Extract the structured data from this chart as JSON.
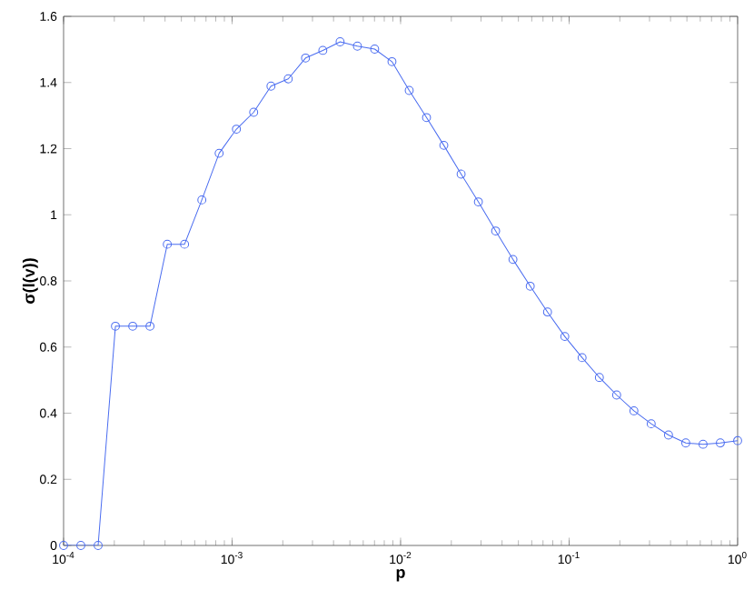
{
  "chart_data": {
    "type": "line",
    "xlabel": "p",
    "ylabel": "σ(l(v))",
    "log": "x",
    "marker": "circle",
    "line_style": "solid",
    "xlim": [
      0.0001,
      1
    ],
    "ylim": [
      0,
      1.6
    ],
    "xticks": [
      {
        "value": 0.0001,
        "label": "10$^{-4}$"
      },
      {
        "value": 0.001,
        "label": "10$^{-3}$"
      },
      {
        "value": 0.01,
        "label": "10$^{-2}$"
      },
      {
        "value": 0.1,
        "label": "10$^{-1}$"
      },
      {
        "value": 1,
        "label": "10$^{0}$"
      }
    ],
    "yticks": [
      0,
      0.2,
      0.4,
      0.6,
      0.8,
      1,
      1.2,
      1.4,
      1.6
    ],
    "x": [
      0.0001,
      0.0001266,
      0.0001603,
      0.0002031,
      0.0002572,
      0.0003257,
      0.0004125,
      0.0005223,
      0.0006614,
      0.0008377,
      0.001061,
      0.001343,
      0.001701,
      0.002154,
      0.002728,
      0.003455,
      0.004375,
      0.005541,
      0.007017,
      0.008886,
      0.01125,
      0.01425,
      0.01805,
      0.02286,
      0.02894,
      0.03665,
      0.04642,
      0.05878,
      0.07444,
      0.09427,
      0.1194,
      0.1512,
      0.1915,
      0.2424,
      0.307,
      0.3888,
      0.4924,
      0.6236,
      0.7897,
      1
    ],
    "series": [
      {
        "color": "#4a6cf0",
        "values": [
          0,
          0,
          0,
          0.663,
          0.663,
          0.663,
          0.911,
          0.911,
          1.045,
          1.186,
          1.259,
          1.31,
          1.389,
          1.411,
          1.474,
          1.497,
          1.523,
          1.51,
          1.501,
          1.463,
          1.376,
          1.294,
          1.21,
          1.123,
          1.039,
          0.951,
          0.865,
          0.784,
          0.706,
          0.632,
          0.568,
          0.508,
          0.455,
          0.407,
          0.368,
          0.334,
          0.31,
          0.306,
          0.31,
          0.317
        ]
      }
    ]
  }
}
